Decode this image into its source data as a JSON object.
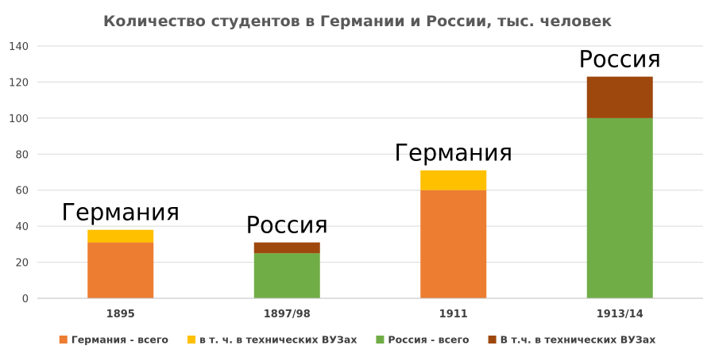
{
  "chart_data": {
    "type": "bar",
    "stacked": true,
    "title": "Количество студентов в Германии и России, тыс. человек",
    "categories": [
      "1895",
      "1897/98",
      "1911",
      "1913/14"
    ],
    "ylim": [
      0,
      140
    ],
    "yticks": [
      0,
      20,
      40,
      60,
      80,
      100,
      120,
      140
    ],
    "grid": true,
    "legend_position": "bottom",
    "series": [
      {
        "name": "Германия - всего",
        "color": "#ED7D31",
        "values": [
          31,
          null,
          60,
          null
        ]
      },
      {
        "name": "в т. ч. в технических ВУЗах",
        "color": "#FFC000",
        "values": [
          7,
          null,
          11,
          null
        ]
      },
      {
        "name": "Россия - всего",
        "color": "#70AD47",
        "values": [
          null,
          25,
          null,
          100
        ]
      },
      {
        "name": "В т.ч. в технических ВУЗах",
        "color": "#9E480E",
        "values": [
          null,
          6,
          null,
          23
        ]
      }
    ],
    "annotations": [
      "Германия",
      "Россия",
      "Германия",
      "Россия"
    ]
  }
}
